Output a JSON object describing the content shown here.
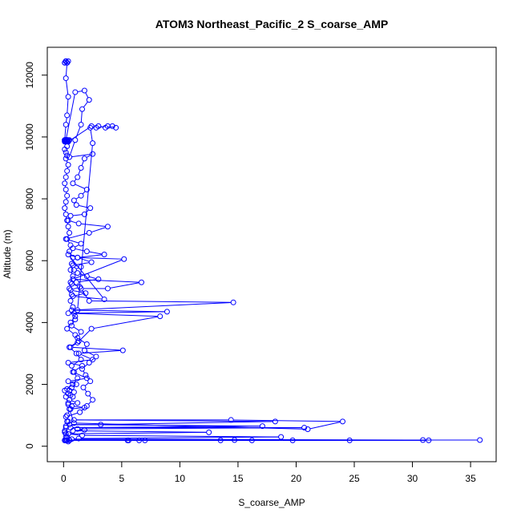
{
  "chart_data": {
    "type": "line",
    "title": "ATOM3 Northeast_Pacific_2 S_coarse_AMP",
    "xlabel": "S_coarse_AMP",
    "ylabel": "Altitude (m)",
    "xlim": [
      -1.4,
      37.2
    ],
    "ylim": [
      -500,
      12900
    ],
    "x_ticks": [
      0,
      5,
      10,
      15,
      20,
      25,
      30,
      35
    ],
    "y_ticks": [
      0,
      2000,
      4000,
      6000,
      8000,
      10000,
      12000
    ],
    "grid": false,
    "legend": "none",
    "color": "#0000ff",
    "marker": "open-circle",
    "series": [
      {
        "x": [
          0.1,
          0.2,
          0.3,
          0.4,
          0.3,
          0.2,
          0.1,
          0.2,
          0.3,
          0.2,
          0.4,
          0.3,
          0.2,
          0.1,
          0.2,
          0.3,
          0.4,
          0.2,
          0.1,
          0.2,
          0.3,
          0.5,
          0.2,
          0.3,
          0.1,
          0.2,
          0.4,
          0.3,
          0.2,
          0.1,
          0.2,
          0.3,
          0.2,
          0.1,
          0.3,
          0.4,
          0.2,
          0.3,
          0.1,
          0.2,
          0.3,
          0.2,
          0.4,
          0.3,
          0.2,
          0.1,
          0.2,
          0.3,
          0.2,
          0.1,
          0.2,
          0.3,
          0.4,
          0.5,
          0.3,
          0.6,
          0.5,
          0.8,
          0.7,
          0.6,
          0.8,
          0.6,
          0.5,
          0.7,
          0.6,
          0.8,
          0.9,
          1.0,
          0.7,
          1.5,
          1.2,
          2.0,
          1.8,
          2.8,
          2.2,
          1.6,
          1.9,
          2.3,
          1.7,
          2.1,
          2.5,
          2.0,
          1.4,
          0.2,
          0.3,
          0.2,
          0.1,
          0.2,
          0.3,
          0.5,
          0.4,
          0.3,
          0.2,
          0.1,
          0.2,
          0.4,
          0.3,
          0.6,
          0.4,
          0.2,
          0.1,
          0.8,
          1.2,
          0.9,
          0.7,
          1.5,
          1.1,
          0.5,
          1.3,
          1.0,
          0.3,
          0.6,
          1.0,
          1.2,
          2.5,
          2.3,
          3.0,
          3.6,
          4.2,
          4.5,
          3.8,
          2.8,
          2.4,
          0.4,
          0.2,
          1.0,
          1.8,
          2.2,
          1.6,
          1.5,
          1.0,
          0.5,
          2.5,
          1.8,
          1.5,
          1.2,
          0.8,
          2.0,
          1.5,
          0.9,
          1.1,
          2.3,
          1.8,
          0.6,
          0.4,
          1.3,
          3.8,
          2.2,
          0.2,
          1.5,
          0.8,
          2.0,
          3.5,
          1.2,
          2.4,
          0.8,
          1.5,
          0.9,
          1.2,
          2.0,
          3.0,
          1.1,
          0.7,
          1.4,
          0.6,
          1.9,
          0.8,
          3.5,
          0.4,
          1.2,
          5.2,
          0.8,
          6.7,
          3.8,
          1.5,
          2.2,
          14.6,
          0.7,
          8.9,
          0.4,
          8.3,
          2.4,
          1.2,
          0.6,
          5.1,
          1.3,
          2.5,
          0.4,
          1.6,
          0.8,
          2.0,
          0.4,
          1.1,
          0.7,
          0.3,
          0.5,
          0.9,
          0.4,
          0.6,
          0.8,
          0.5,
          1.2,
          0.4,
          0.7,
          1.8,
          0.5,
          0.9,
          21.0,
          24.0,
          14.4,
          0.9,
          18.2,
          3.2,
          0.5,
          17.1,
          0.6,
          20.7,
          1.2,
          1.8,
          0.8,
          12.5,
          0.4,
          1.6,
          18.7,
          1.3,
          0.7,
          30.9,
          0.3,
          35.8,
          14.7,
          0.5,
          31.4,
          13.5,
          0.3,
          24.6,
          16.2,
          0.2,
          19.7,
          5.6,
          0.2,
          7.0,
          0.1,
          5.5,
          0.2,
          6.5,
          0.1
        ],
        "y": [
          12400,
          12450,
          12400,
          12450,
          12400,
          12450,
          12400,
          12450,
          12400,
          11900,
          11300,
          10700,
          10400,
          9900,
          9850,
          9900,
          9850,
          9900,
          9850,
          9900,
          9850,
          9900,
          9850,
          9900,
          9850,
          9900,
          9850,
          9900,
          9850,
          9900,
          9850,
          9900,
          9850,
          9900,
          9850,
          9900,
          9850,
          9700,
          9600,
          9500,
          9400,
          9300,
          9100,
          8900,
          8700,
          8500,
          8300,
          8100,
          7900,
          7700,
          7500,
          7300,
          7100,
          6900,
          6700,
          6500,
          6300,
          6100,
          5900,
          5700,
          5500,
          5300,
          5100,
          4900,
          4700,
          4500,
          4300,
          4100,
          3900,
          3700,
          3500,
          3300,
          3100,
          2900,
          2700,
          2500,
          2300,
          2100,
          1900,
          1700,
          1500,
          1300,
          1100,
          950,
          800,
          650,
          500,
          400,
          300,
          200,
          150,
          200,
          300,
          450,
          600,
          800,
          1000,
          1200,
          1400,
          1600,
          1800,
          2000,
          2200,
          2400,
          2600,
          2800,
          3000,
          3200,
          3400,
          3600,
          3800,
          4000,
          4200,
          4400,
          9800,
          10300,
          10350,
          10300,
          10350,
          10300,
          10350,
          10300,
          10350,
          9850,
          9900,
          11450,
          11500,
          11200,
          10900,
          10400,
          9900,
          9350,
          9450,
          9300,
          9000,
          8700,
          8500,
          8300,
          8100,
          7950,
          7800,
          7700,
          7500,
          7450,
          7300,
          7200,
          7100,
          6900,
          6700,
          6550,
          6400,
          6300,
          6200,
          6100,
          5950,
          5850,
          5800,
          5700,
          5600,
          5500,
          5400,
          5300,
          5250,
          5150,
          5050,
          4950,
          4850,
          4750,
          6200,
          6100,
          6050,
          5400,
          5300,
          5100,
          5100,
          4700,
          4650,
          4400,
          4350,
          4300,
          4200,
          3800,
          3350,
          3200,
          3100,
          3000,
          2800,
          2700,
          2600,
          2400,
          2200,
          2100,
          2000,
          1900,
          1850,
          1800,
          1750,
          1700,
          1650,
          1600,
          1500,
          1400,
          1350,
          1300,
          1250,
          1200,
          750,
          550,
          800,
          850,
          850,
          800,
          700,
          700,
          650,
          600,
          600,
          560,
          530,
          500,
          450,
          400,
          350,
          300,
          250,
          230,
          200,
          200,
          200,
          200,
          190,
          190,
          190,
          190,
          190,
          190,
          190,
          190,
          190,
          190,
          190,
          190,
          190,
          190,
          190,
          190
        ]
      }
    ]
  }
}
